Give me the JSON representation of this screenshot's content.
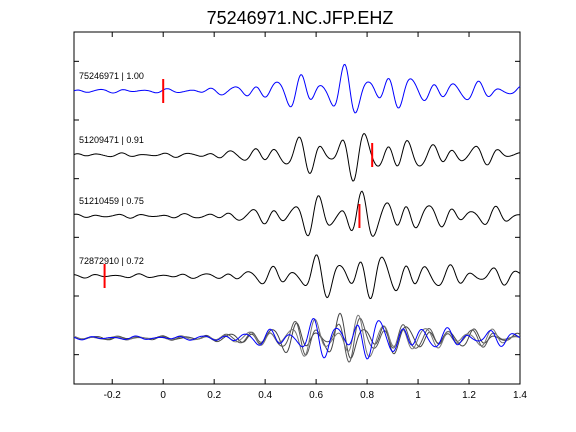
{
  "chart_data": {
    "type": "line",
    "title": "75246971.NC.JFP.EHZ",
    "xlabel": "",
    "ylabel": "",
    "xlim": [
      -0.35,
      1.4
    ],
    "ylim": [
      0,
      6
    ],
    "x_ticks": [
      -0.2,
      0,
      0.2,
      0.4,
      0.6,
      0.8,
      1,
      1.2,
      1.4
    ],
    "x_tick_labels": [
      "-0.2",
      "0",
      "0.2",
      "0.4",
      "0.6",
      "0.8",
      "1",
      "1.2",
      "1.4"
    ],
    "y_tick_count": 6,
    "grid": false,
    "traces": [
      {
        "label": "75246971 | 1.00",
        "color": "#0000ff",
        "pick": 0.0,
        "pick_color": "#ff0000"
      },
      {
        "label": "51209471 | 0.91",
        "color": "#000000",
        "pick": 0.82,
        "pick_color": "#ff0000"
      },
      {
        "label": "51210459 | 0.75",
        "color": "#000000",
        "pick": 0.77,
        "pick_color": "#ff0000"
      },
      {
        "label": "72872910 | 0.72",
        "color": "#000000",
        "pick": -0.23,
        "pick_color": "#ff0000"
      }
    ],
    "stack": {
      "colors": [
        "#444444",
        "#555555",
        "#777777",
        "#0000ff"
      ]
    }
  }
}
